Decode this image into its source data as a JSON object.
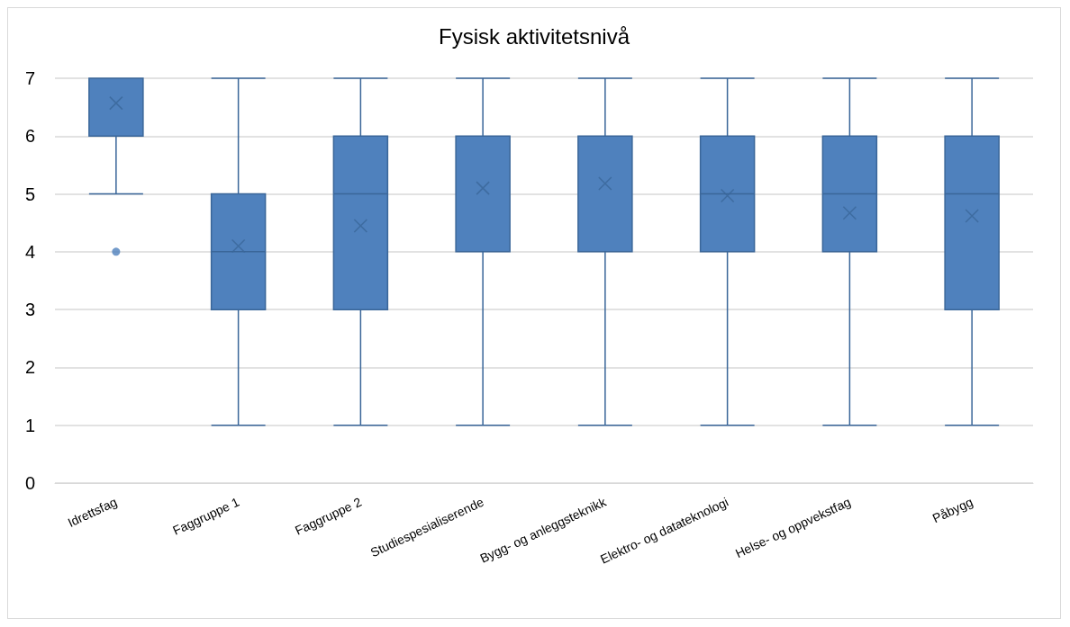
{
  "chart_data": {
    "type": "box",
    "title": "Fysisk aktivitetsnivå",
    "categories": [
      "Idrettsfag",
      "Faggruppe 1",
      "Faggruppe 2",
      "Studiespesialiserende",
      "Bygg- og anleggsteknikk",
      "Elektro- og datateknologi",
      "Helse- og oppvekstfag",
      "Påbygg"
    ],
    "boxes": [
      {
        "low": 5,
        "q1": 6,
        "median": 7,
        "q3": 7,
        "high": 7,
        "mean": 6.57,
        "outliers": [
          4
        ]
      },
      {
        "low": 1,
        "q1": 3,
        "median": 4,
        "q3": 5,
        "high": 7,
        "mean": 4.1
      },
      {
        "low": 1,
        "q1": 3,
        "median": 5,
        "q3": 6,
        "high": 7,
        "mean": 4.45
      },
      {
        "low": 1,
        "q1": 4,
        "median": 6,
        "q3": 6,
        "high": 7,
        "mean": 5.1
      },
      {
        "low": 1,
        "q1": 4,
        "median": 6,
        "q3": 6,
        "high": 7,
        "mean": 5.18
      },
      {
        "low": 1,
        "q1": 4,
        "median": 5,
        "q3": 6,
        "high": 7,
        "mean": 4.97
      },
      {
        "low": 1,
        "q1": 4,
        "median": 5,
        "q3": 6,
        "high": 7,
        "mean": 4.67
      },
      {
        "low": 1,
        "q1": 3,
        "median": 5,
        "q3": 6,
        "high": 7,
        "mean": 4.62
      }
    ],
    "color": "#4f81bd",
    "ylim": [
      0,
      7
    ],
    "yticks": [
      0,
      1,
      2,
      3,
      4,
      5,
      6,
      7
    ],
    "grid": "y"
  }
}
